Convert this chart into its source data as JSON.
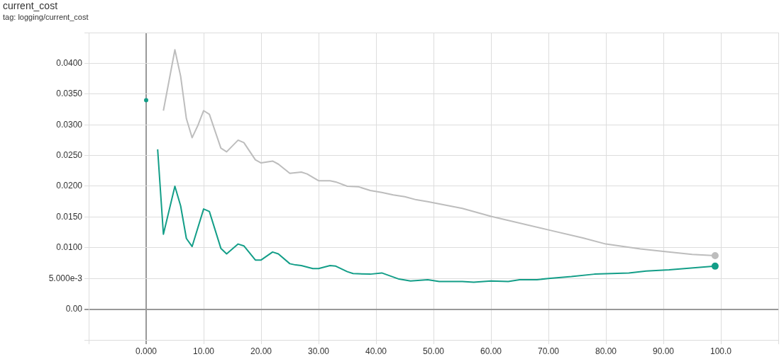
{
  "chart_data": {
    "type": "line",
    "title": "current_cost",
    "subtitle": "tag: logging/current_cost",
    "xlim": [
      -10,
      110
    ],
    "xticks": [
      {
        "value": -10,
        "label": null
      },
      {
        "value": 0,
        "label": "0.000"
      },
      {
        "value": 10,
        "label": "10.00"
      },
      {
        "value": 20,
        "label": "20.00"
      },
      {
        "value": 30,
        "label": "30.00"
      },
      {
        "value": 40,
        "label": "40.00"
      },
      {
        "value": 50,
        "label": "50.00"
      },
      {
        "value": 60,
        "label": "60.00"
      },
      {
        "value": 70,
        "label": "70.00"
      },
      {
        "value": 80,
        "label": "80.00"
      },
      {
        "value": 90,
        "label": "90.00"
      },
      {
        "value": 100,
        "label": "100.0"
      },
      {
        "value": 110,
        "label": null
      }
    ],
    "ylim": [
      -0.005,
      0.045
    ],
    "yticks": [
      {
        "value": -0.005,
        "label": null
      },
      {
        "value": 0,
        "label": "0.00"
      },
      {
        "value": 0.005,
        "label": "5.000e-3"
      },
      {
        "value": 0.01,
        "label": "0.0100"
      },
      {
        "value": 0.015,
        "label": "0.0150"
      },
      {
        "value": 0.02,
        "label": "0.0200"
      },
      {
        "value": 0.025,
        "label": "0.0250"
      },
      {
        "value": 0.03,
        "label": "0.0300"
      },
      {
        "value": 0.035,
        "label": "0.0350"
      },
      {
        "value": 0.04,
        "label": "0.0400"
      },
      {
        "value": 0.045,
        "label": null
      }
    ],
    "grid": true,
    "legend": false,
    "series": [
      {
        "color": "#bdbdbd",
        "x": [
          3,
          5,
          6,
          7,
          8,
          9,
          10,
          11,
          13,
          14,
          16,
          17,
          19,
          20,
          22,
          23,
          25,
          27,
          28,
          30,
          32,
          33,
          35,
          37,
          39,
          41,
          43,
          45,
          47,
          49,
          55,
          60,
          70,
          76,
          80,
          86,
          90,
          95,
          99
        ],
        "values": [
          0.0323,
          0.0422,
          0.0379,
          0.031,
          0.0279,
          0.0299,
          0.0323,
          0.0317,
          0.0262,
          0.0256,
          0.0275,
          0.0271,
          0.0243,
          0.0238,
          0.0241,
          0.0236,
          0.0221,
          0.0223,
          0.022,
          0.0209,
          0.0209,
          0.0207,
          0.02,
          0.0199,
          0.0193,
          0.019,
          0.0186,
          0.0183,
          0.0178,
          0.0175,
          0.0164,
          0.0151,
          0.0129,
          0.0116,
          0.0106,
          0.0098,
          0.0094,
          0.0089,
          0.0087
        ]
      },
      {
        "color": "#139e88",
        "x": [
          0,
          1,
          2,
          3,
          5,
          6,
          7,
          8,
          10,
          11,
          13,
          14,
          16,
          17,
          19,
          20,
          22,
          23,
          25,
          26,
          27,
          29,
          30,
          32,
          33,
          35,
          36,
          39,
          41,
          44,
          46,
          49,
          51,
          55,
          57,
          60,
          63,
          65,
          68,
          70,
          74,
          78,
          84,
          87,
          91,
          99
        ],
        "values": [
          0.034,
          null,
          0.026,
          0.0122,
          0.02,
          0.0168,
          0.0115,
          0.0102,
          0.0163,
          0.0159,
          0.0099,
          0.009,
          0.0106,
          0.0103,
          0.008,
          0.008,
          0.0093,
          0.009,
          0.0074,
          0.0072,
          0.0071,
          0.0066,
          0.0066,
          0.0071,
          0.007,
          0.0061,
          0.0058,
          0.0057,
          0.0059,
          0.0049,
          0.0046,
          0.0048,
          0.0045,
          0.0045,
          0.0044,
          0.0046,
          0.0045,
          0.0048,
          0.0048,
          0.005,
          0.0053,
          0.0057,
          0.0059,
          0.0062,
          0.0064,
          0.007
        ]
      }
    ]
  }
}
